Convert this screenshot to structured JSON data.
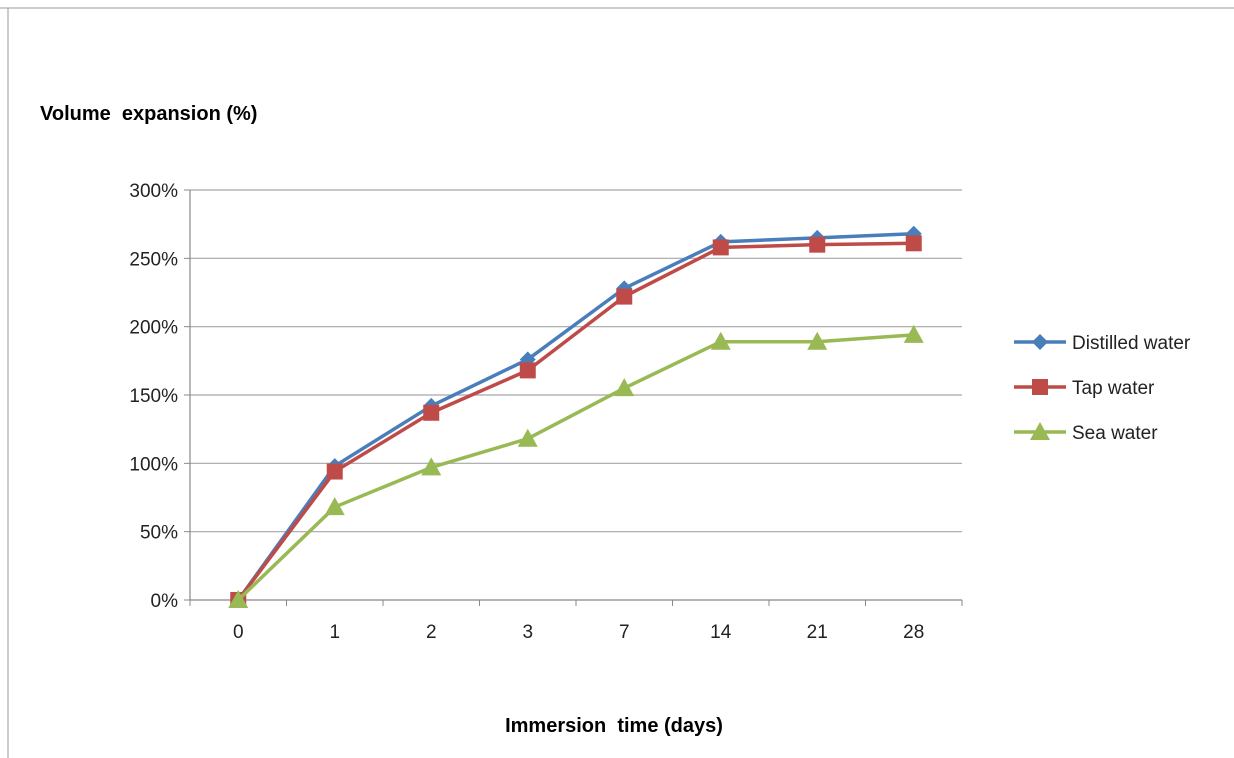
{
  "chart_data": {
    "type": "line",
    "ylabel": "Volume  expansion (%)",
    "xlabel": "Immersion  time (days)",
    "categories": [
      "0",
      "1",
      "2",
      "3",
      "7",
      "14",
      "21",
      "28"
    ],
    "y_ticks": [
      "0%",
      "50%",
      "100%",
      "150%",
      "200%",
      "250%",
      "300%"
    ],
    "ylim": [
      0,
      300
    ],
    "grid": "horizontal",
    "legend_position": "right",
    "series": [
      {
        "name": "Distilled water",
        "color": "#4a7ebb",
        "marker": "diamond",
        "values": [
          0,
          98,
          142,
          176,
          228,
          262,
          265,
          268
        ]
      },
      {
        "name": "Tap water",
        "color": "#be4b48",
        "marker": "square",
        "values": [
          0,
          94,
          137,
          168,
          222,
          258,
          260,
          261
        ]
      },
      {
        "name": "Sea water",
        "color": "#98b954",
        "marker": "triangle",
        "values": [
          0,
          68,
          97,
          118,
          155,
          189,
          189,
          194
        ]
      }
    ]
  }
}
